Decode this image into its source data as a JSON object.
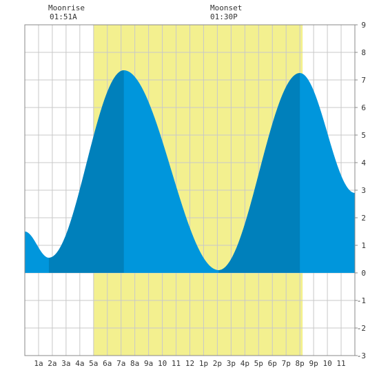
{
  "moon": {
    "rise_label": "Moonrise",
    "rise_time": "01:51A",
    "set_label": "Moonset",
    "set_time": "01:30P"
  },
  "chart_data": {
    "type": "area",
    "title": "",
    "xlabel": "",
    "ylabel": "",
    "x_range_hours": [
      0,
      24
    ],
    "ylim": [
      -3,
      9
    ],
    "y_ticks": [
      -3,
      -2,
      -1,
      0,
      1,
      2,
      3,
      4,
      5,
      6,
      7,
      8,
      9
    ],
    "x_tick_labels": [
      "1a",
      "2a",
      "3a",
      "4a",
      "5a",
      "6a",
      "7a",
      "8a",
      "9a",
      "10",
      "11",
      "12",
      "1p",
      "2p",
      "3p",
      "4p",
      "5p",
      "6p",
      "7p",
      "8p",
      "9p",
      "10",
      "11"
    ],
    "grid": true,
    "daylight_hours": [
      5.0,
      20.2
    ],
    "dark_band_hours": [
      [
        1.75,
        7.2
      ],
      [
        14.1,
        20.0
      ]
    ],
    "tide_extrema": [
      {
        "time_hours": 0.0,
        "height": 1.5
      },
      {
        "time_hours": 1.75,
        "height": 0.55
      },
      {
        "time_hours": 7.2,
        "height": 7.35
      },
      {
        "time_hours": 14.1,
        "height": 0.1
      },
      {
        "time_hours": 20.0,
        "height": 7.25
      },
      {
        "time_hours": 24.0,
        "height": 2.9
      }
    ],
    "colors": {
      "daylight": "#f3f08f",
      "tide_light": "#0096dc",
      "tide_dark": "#0080bb",
      "grid": "#c8c8c8",
      "frame": "#888888"
    }
  }
}
